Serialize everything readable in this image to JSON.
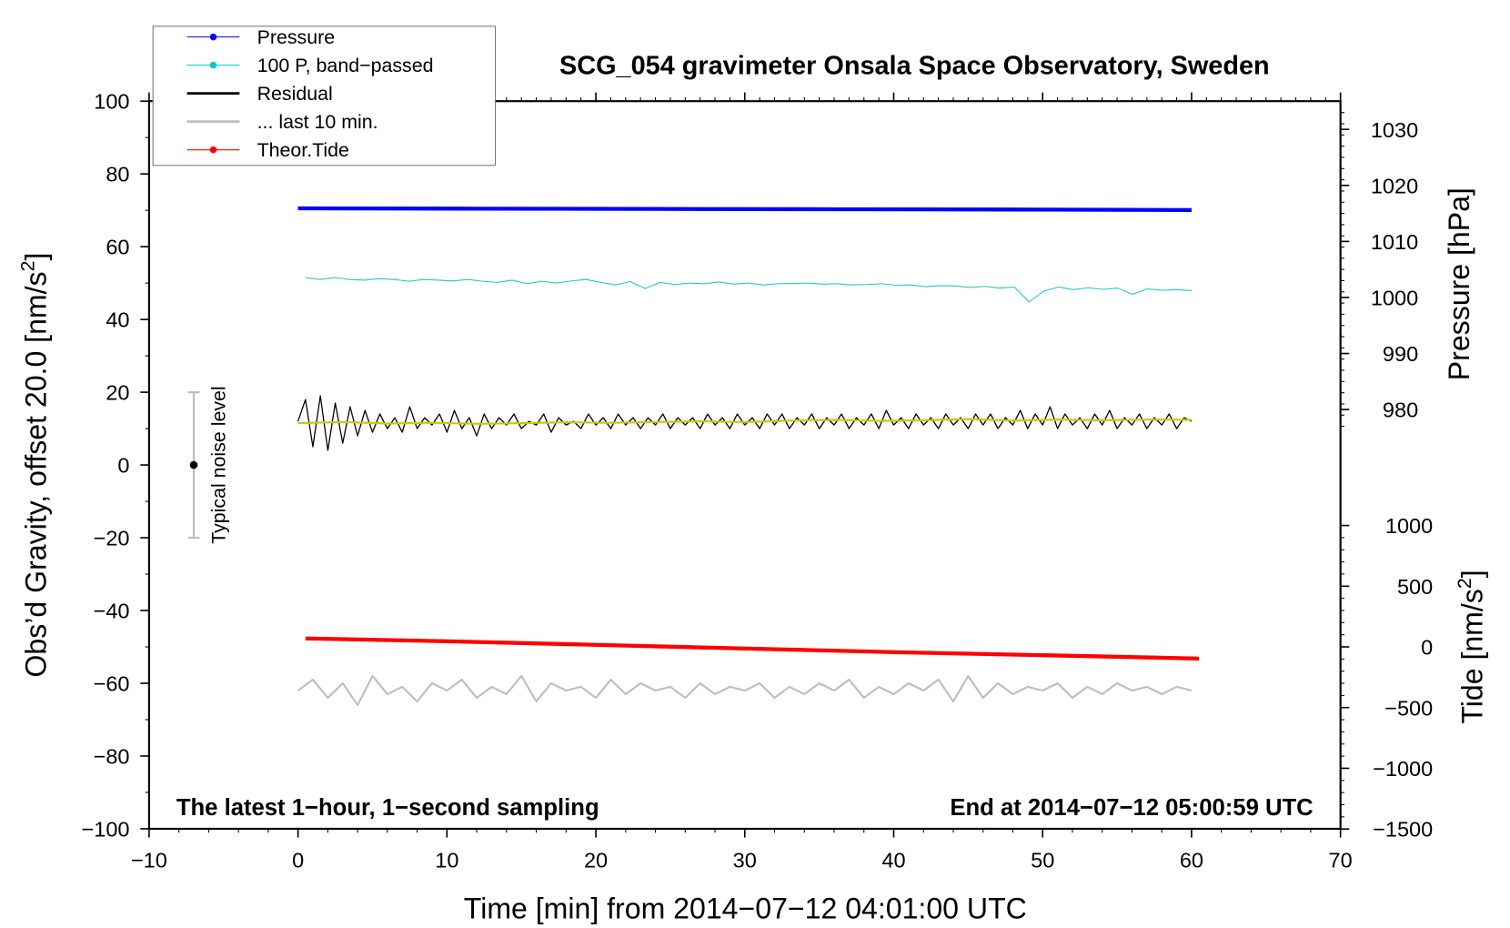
{
  "chart_data": {
    "type": "line",
    "title": "SCG_054 gravimeter Onsala Space Observatory, Sweden",
    "xlabel": "Time [min] from 2014−07−12 04:01:00 UTC",
    "ylabel": "Obs’d Gravity, offset 20.0 [nm/s",
    "ylabel_sup": "2",
    "ylabel_end": "]",
    "y2label": "Pressure [hPa]",
    "y3label": "Tide [nm/s",
    "y3label_sup": "2",
    "y3label_end": "]",
    "xlim": [
      -10,
      70
    ],
    "ylim": [
      -100,
      100
    ],
    "pressure_axis_range": [
      980,
      1030
    ],
    "tide_axis_range": [
      -1500,
      1000
    ],
    "x_ticks": [
      "−10",
      "0",
      "10",
      "20",
      "30",
      "40",
      "50",
      "60",
      "70"
    ],
    "y_ticks": [
      "100",
      "80",
      "60",
      "40",
      "20",
      "0",
      "−20",
      "−40",
      "−60",
      "−80",
      "−100"
    ],
    "pressure_ticks": [
      "1030",
      "1020",
      "1010",
      "1000",
      "990",
      "980"
    ],
    "tide_ticks": [
      "1000",
      "500",
      "0",
      "−500",
      "−1000",
      "−1500"
    ],
    "annotation_left": "The latest 1−hour, 1−second sampling",
    "annotation_right": "End at 2014−07−12 05:00:59 UTC",
    "noise_label": "Typical noise level",
    "noise_bar": {
      "x": -7,
      "center": 0,
      "low": -20,
      "high": 20
    },
    "legend": [
      {
        "label": "Pressure",
        "color": "#0000ff",
        "marker": true
      },
      {
        "label": "100 P, band−passed",
        "color": "#00c8c8",
        "marker": true
      },
      {
        "label": "Residual",
        "color": "#000000",
        "marker": false
      },
      {
        "label": "... last 10 min.",
        "color": "#bebebe",
        "marker": false
      },
      {
        "label": "Theor.Tide",
        "color": "#ff0000",
        "marker": true
      }
    ],
    "series": [
      {
        "name": "Pressure",
        "axis": "pressure",
        "color": "#0000ff",
        "x_range": [
          0,
          60
        ],
        "values": [
          1015.9,
          1015.85,
          1015.8,
          1015.75,
          1015.7,
          1015.6
        ]
      },
      {
        "name": "100 P, band-passed",
        "axis": "left",
        "color": "#20c8c8",
        "x_range": [
          0.5,
          60
        ],
        "values": [
          51.5,
          51,
          51.5,
          51,
          50.8,
          51.2,
          51,
          50.5,
          51,
          50.8,
          50.6,
          51,
          50.5,
          50.2,
          50.8,
          49.8,
          50.5,
          50,
          50.6,
          51,
          50.2,
          49.5,
          50.4,
          48.5,
          50.2,
          49.6,
          50,
          49.8,
          50.3,
          49.7,
          50,
          49.5,
          49.8,
          49.9,
          50,
          49.7,
          49.8,
          49.5,
          49.6,
          49.8,
          49.4,
          49.5,
          49,
          49.3,
          49.2,
          48.8,
          49.1,
          48.6,
          48.9,
          44.8,
          47.8,
          48.9,
          48.2,
          48.7,
          48.3,
          48.6,
          46.9,
          48.4,
          48,
          48.2,
          47.9
        ]
      },
      {
        "name": "Residual",
        "axis": "left",
        "color": "#000000",
        "x_range": [
          0,
          60
        ],
        "values": [
          12,
          18,
          5,
          19,
          4,
          17,
          6,
          16,
          8,
          15,
          9,
          14,
          10,
          13,
          9,
          16,
          10,
          13,
          11,
          14,
          9,
          15,
          10,
          13,
          8,
          14,
          10,
          13,
          11,
          14,
          10,
          12,
          11,
          14,
          9,
          13,
          11,
          12,
          10,
          14,
          11,
          13,
          10,
          14,
          11,
          13,
          10,
          13,
          11,
          14,
          10,
          13,
          11,
          13,
          10,
          14,
          11,
          13,
          10,
          14,
          11,
          13,
          10,
          14,
          11,
          14,
          10,
          13,
          11,
          14,
          10,
          13,
          11,
          14,
          10,
          13,
          11,
          14,
          10,
          15,
          11,
          13,
          10,
          14,
          11,
          13,
          10,
          14,
          11,
          13,
          10,
          14,
          11,
          14,
          10,
          13,
          11,
          15,
          10,
          14,
          11,
          16,
          10,
          14,
          11,
          13,
          10,
          14,
          11,
          15,
          10,
          13,
          11,
          14,
          10,
          13,
          11,
          14,
          10,
          13,
          12
        ]
      },
      {
        "name": "Residual smoothed",
        "axis": "left",
        "color": "#c8c800",
        "x_range": [
          0,
          60
        ],
        "values": [
          11.5,
          11.8,
          11.4,
          11.6,
          11.3,
          11.5,
          11.7,
          11.6,
          11.8,
          12,
          11.8,
          12.2,
          12.4,
          12.1,
          12.3,
          12.6,
          12.2,
          12.5,
          12.3,
          12.5,
          12.4
        ]
      },
      {
        "name": "... last 10 min.",
        "axis": "left",
        "color": "#bebebe",
        "x_range": [
          0,
          60
        ],
        "values": [
          -62,
          -59,
          -64,
          -60,
          -66,
          -58,
          -63,
          -61,
          -65,
          -60,
          -62,
          -59,
          -64,
          -61,
          -63,
          -58,
          -65,
          -60,
          -62,
          -61,
          -64,
          -59,
          -63,
          -60,
          -62,
          -61,
          -64,
          -60,
          -63,
          -61,
          -62,
          -60,
          -64,
          -61,
          -63,
          -60,
          -62,
          -59,
          -64,
          -61,
          -63,
          -60,
          -62,
          -59,
          -65,
          -58,
          -64,
          -60,
          -63,
          -61,
          -62,
          -60,
          -64,
          -61,
          -63,
          -60,
          -62,
          -61,
          -63,
          -61,
          -62
        ]
      },
      {
        "name": "Theor.Tide",
        "axis": "tide",
        "color": "#ff0000",
        "x_range": [
          0.5,
          60.5
        ],
        "values": [
          70,
          45,
          15,
          -15,
          -45,
          -70,
          -96
        ]
      }
    ]
  }
}
